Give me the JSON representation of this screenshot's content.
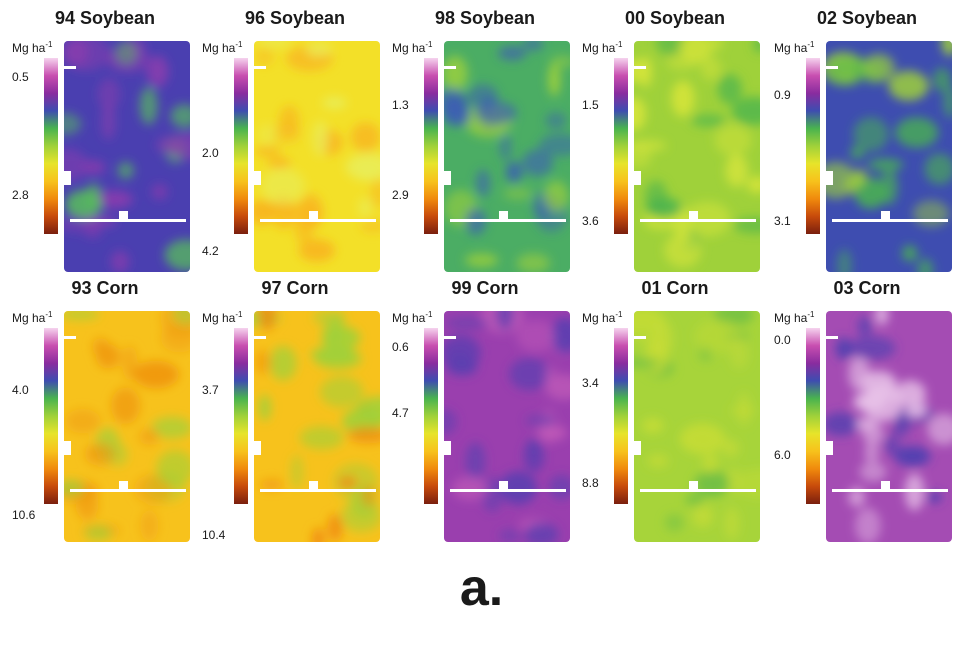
{
  "panel_label": "a.",
  "unit_text": "Mg ha",
  "unit_exp": "-1",
  "colorscale": [
    "#7a1f0e",
    "#c74a0b",
    "#f08a0d",
    "#f7c21c",
    "#e7e42a",
    "#9fd13a",
    "#49b34f",
    "#3e4db0",
    "#8a2c9f",
    "#c84fb0",
    "#f5d3ee"
  ],
  "chart_data": [
    {
      "type": "heatmap",
      "title": "94 Soybean",
      "colorbar_ticks": [
        "0.5",
        "2.8"
      ],
      "range_label": "",
      "dominant_color": "#4a3fb0",
      "secondary_color": "#8c3cae",
      "accent_color": "#58c05a"
    },
    {
      "type": "heatmap",
      "title": "96 Soybean",
      "colorbar_ticks": [
        "2.0",
        "4.2"
      ],
      "range_label": "",
      "dominant_color": "#f3e028",
      "secondary_color": "#f8b51f",
      "accent_color": "#e9ee5a"
    },
    {
      "type": "heatmap",
      "title": "98 Soybean",
      "colorbar_ticks": [
        "1.3",
        "2.9"
      ],
      "range_label": "",
      "dominant_color": "#4bad64",
      "secondary_color": "#3b5db5",
      "accent_color": "#9fd13a"
    },
    {
      "type": "heatmap",
      "title": "00 Soybean",
      "colorbar_ticks": [
        "1.5",
        "3.6"
      ],
      "range_label": "",
      "dominant_color": "#9fd13a",
      "secondary_color": "#d6e53a",
      "accent_color": "#49b34f"
    },
    {
      "type": "heatmap",
      "title": "02 Soybean",
      "colorbar_ticks": [
        "0.9",
        "3.1"
      ],
      "range_label": "",
      "dominant_color": "#3e4db0",
      "secondary_color": "#49b34f",
      "accent_color": "#9fd13a"
    },
    {
      "type": "heatmap",
      "title": "93 Corn",
      "colorbar_ticks": [
        "4.0",
        "10.6"
      ],
      "range_label": "",
      "dominant_color": "#f7c21c",
      "secondary_color": "#f09a12",
      "accent_color": "#9fd13a"
    },
    {
      "type": "heatmap",
      "title": "97 Corn",
      "colorbar_ticks": [
        "3.7",
        "10.4"
      ],
      "range_label": "",
      "dominant_color": "#f7c21c",
      "secondary_color": "#9fd13a",
      "accent_color": "#f08a0d"
    },
    {
      "type": "heatmap",
      "title": "99 Corn",
      "colorbar_ticks": [
        "0.6",
        "4.7"
      ],
      "range_label": "",
      "dominant_color": "#9a3fae",
      "secondary_color": "#5a3fb0",
      "accent_color": "#c05ab8"
    },
    {
      "type": "heatmap",
      "title": "01 Corn",
      "colorbar_ticks": [
        "3.4",
        "8.8"
      ],
      "range_label": "",
      "dominant_color": "#a7d43a",
      "secondary_color": "#c6dc36",
      "accent_color": "#6fbf45"
    },
    {
      "type": "heatmap",
      "title": "03 Corn",
      "colorbar_ticks": [
        "0.0",
        "6.0"
      ],
      "range_label": "",
      "dominant_color": "#a44cb3",
      "secondary_color": "#e8c2e8",
      "accent_color": "#4a3fb0"
    }
  ]
}
